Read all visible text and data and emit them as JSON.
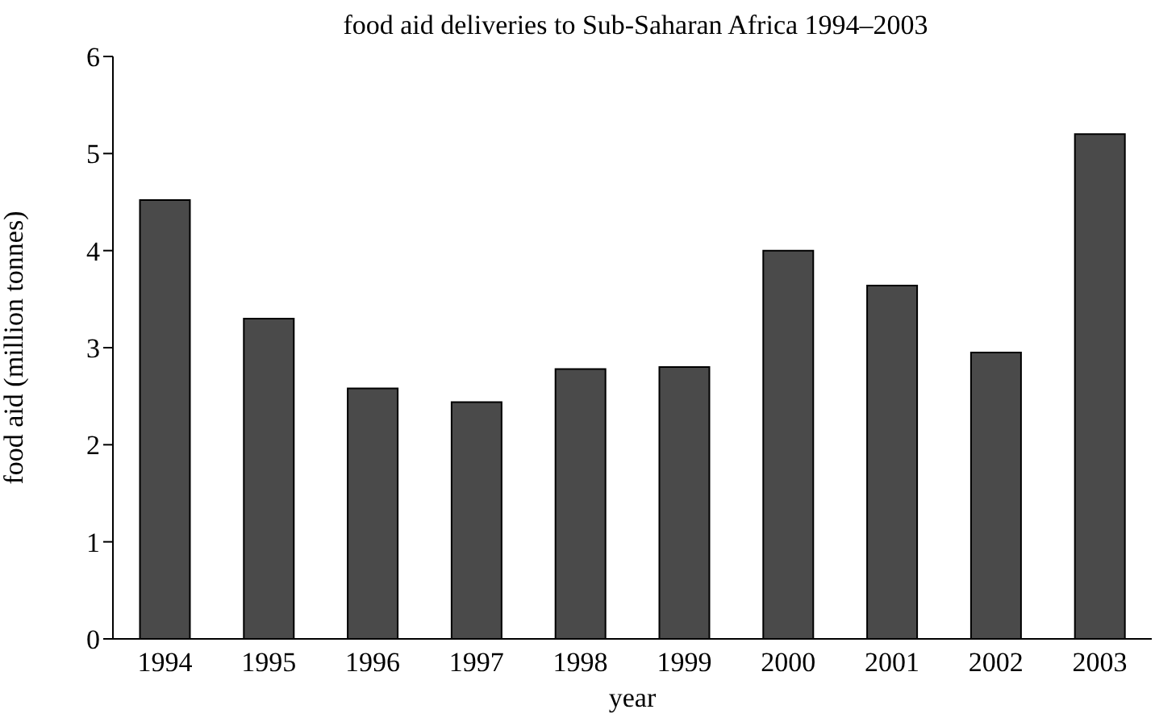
{
  "chart_data": {
    "type": "bar",
    "title": "food aid deliveries to Sub-Saharan Africa 1994–2003",
    "xlabel": "year",
    "ylabel": "food aid (million tonnes)",
    "categories": [
      "1994",
      "1995",
      "1996",
      "1997",
      "1998",
      "1999",
      "2000",
      "2001",
      "2002",
      "2003"
    ],
    "values": [
      4.52,
      3.3,
      2.58,
      2.44,
      2.78,
      2.8,
      4.0,
      3.64,
      2.95,
      5.2
    ],
    "color": "#4a4a4a",
    "ylim": [
      0,
      6
    ],
    "yticks": [
      0,
      1,
      2,
      3,
      4,
      5,
      6
    ],
    "grid": false
  }
}
